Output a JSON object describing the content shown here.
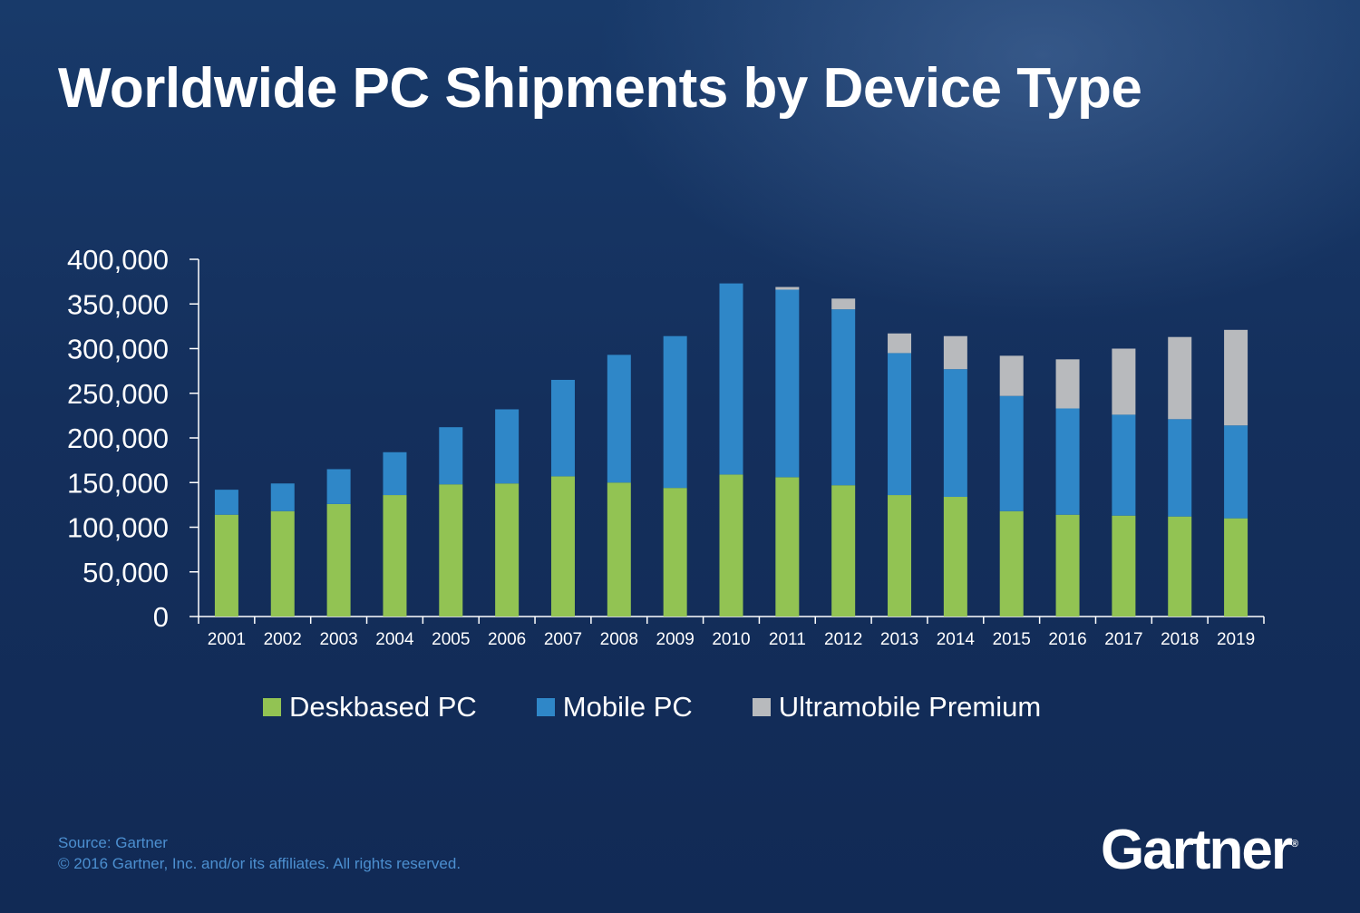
{
  "title": "Worldwide PC Shipments by Device Type",
  "chart_data": {
    "type": "bar",
    "stacked": true,
    "title": "Worldwide PC Shipments by Device Type",
    "xlabel": "",
    "ylabel": "",
    "ylim": [
      0,
      400000
    ],
    "yticks": [
      "0",
      "50,000",
      "100,000",
      "150,000",
      "200,000",
      "250,000",
      "300,000",
      "350,000",
      "400,000"
    ],
    "grid": false,
    "legend_position": "bottom",
    "categories": [
      "2001",
      "2002",
      "2003",
      "2004",
      "2005",
      "2006",
      "2007",
      "2008",
      "2009",
      "2010",
      "2011",
      "2012",
      "2013",
      "2014",
      "2015",
      "2016",
      "2017",
      "2018",
      "2019"
    ],
    "series": [
      {
        "name": "Deskbased PC",
        "color": "#92c353",
        "values": [
          114000,
          118000,
          126000,
          136000,
          148000,
          149000,
          157000,
          150000,
          144000,
          159000,
          156000,
          147000,
          136000,
          134000,
          118000,
          114000,
          113000,
          112000,
          110000
        ]
      },
      {
        "name": "Mobile PC",
        "color": "#2f87c8",
        "values": [
          28000,
          31000,
          39000,
          48000,
          64000,
          83000,
          108000,
          143000,
          170000,
          214000,
          210000,
          197000,
          159000,
          143000,
          129000,
          119000,
          113000,
          109000,
          104000
        ]
      },
      {
        "name": "Ultramobile Premium",
        "color": "#b8babd",
        "values": [
          0,
          0,
          0,
          0,
          0,
          0,
          0,
          0,
          0,
          0,
          3000,
          12000,
          22000,
          37000,
          45000,
          55000,
          74000,
          92000,
          107000
        ]
      }
    ]
  },
  "footer": {
    "source": "Source: Gartner",
    "copyright": "© 2016 Gartner, Inc. and/or its affiliates. All rights reserved."
  },
  "logo": {
    "text": "Gartner",
    "mark": "®"
  }
}
